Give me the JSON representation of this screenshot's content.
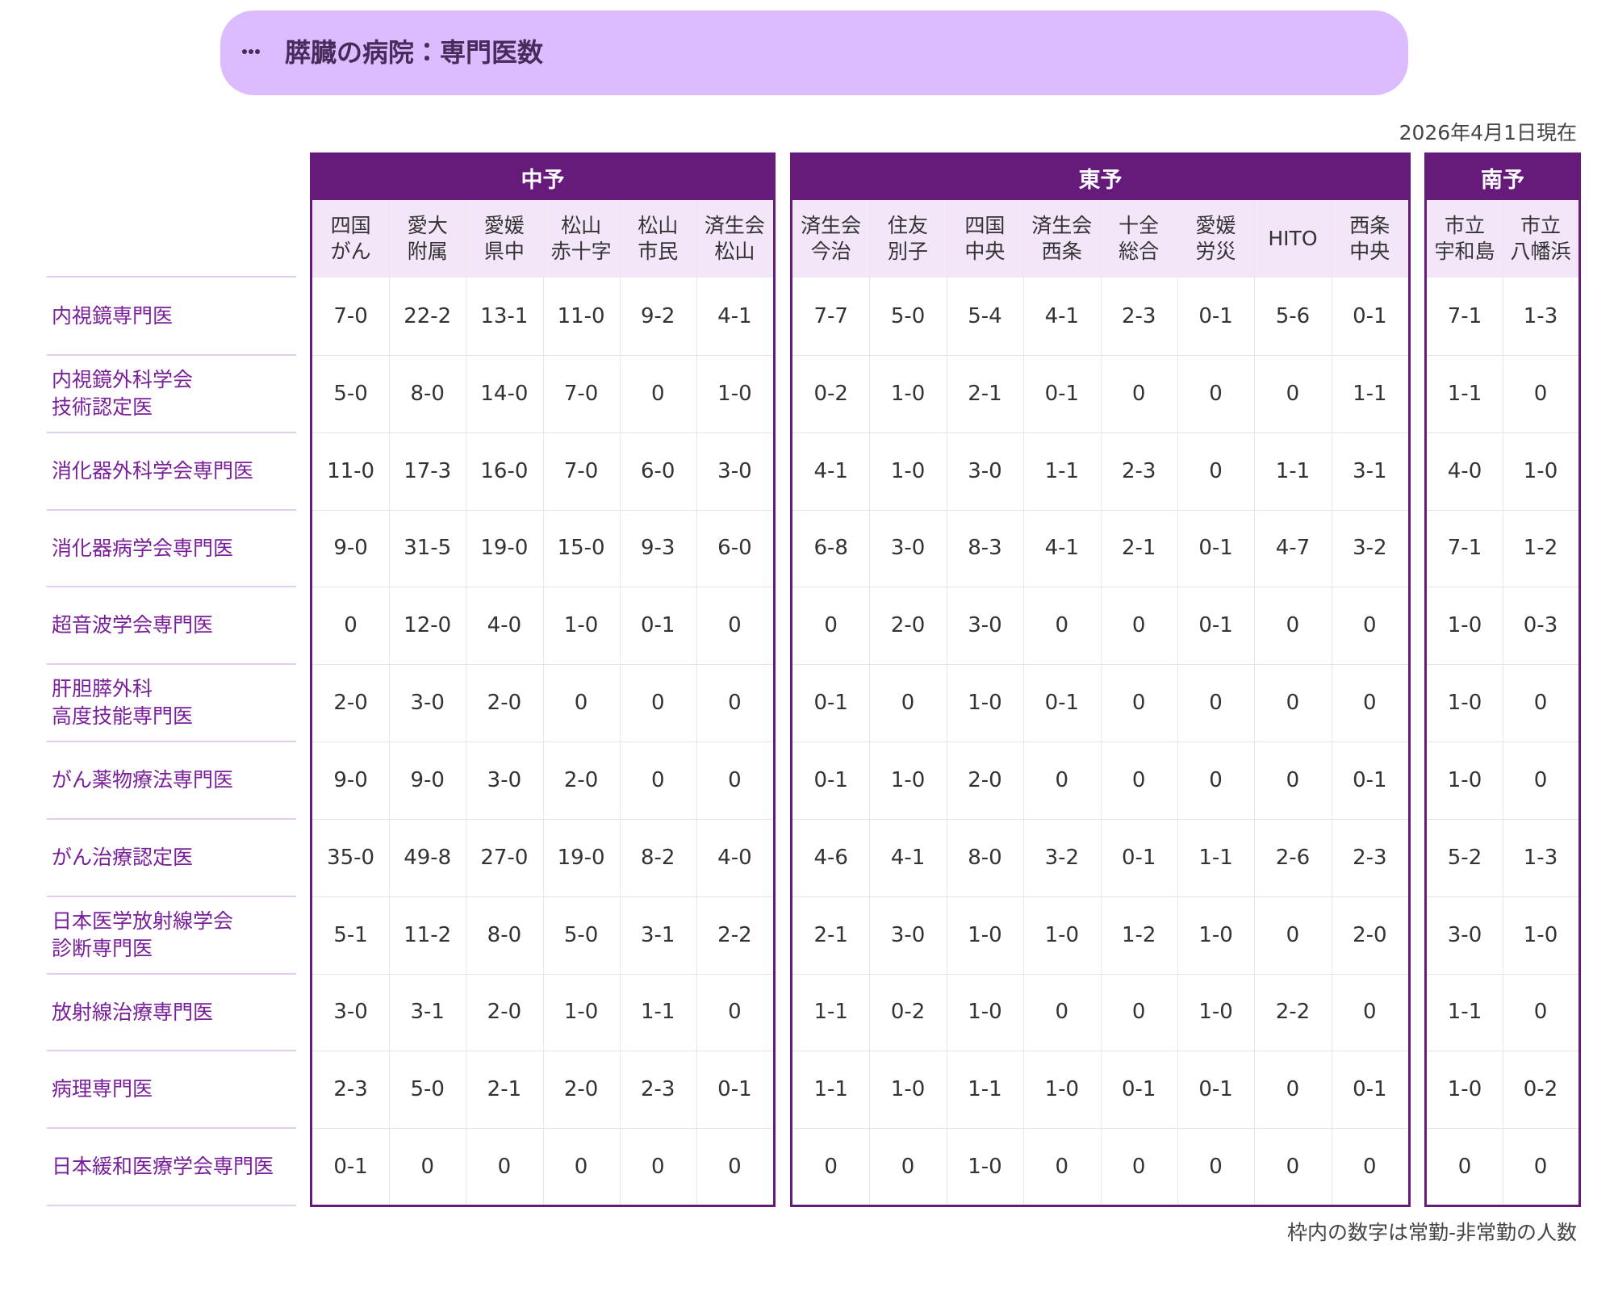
{
  "header": {
    "title": "膵臓の病院：専門医数",
    "date": "2026年4月1日現在"
  },
  "groups": [
    {
      "name": "中予",
      "hospitals": [
        [
          "四国",
          "がん"
        ],
        [
          "愛大",
          "附属"
        ],
        [
          "愛媛",
          "県中"
        ],
        [
          "松山",
          "赤十字"
        ],
        [
          "松山",
          "市民"
        ],
        [
          "済生会",
          "松山"
        ]
      ]
    },
    {
      "name": "東予",
      "hospitals": [
        [
          "済生会",
          "今治"
        ],
        [
          "住友",
          "別子"
        ],
        [
          "四国",
          "中央"
        ],
        [
          "済生会",
          "西条"
        ],
        [
          "十全",
          "総合"
        ],
        [
          "愛媛",
          "労災"
        ],
        [
          "HITO"
        ],
        [
          "西条",
          "中央"
        ]
      ]
    },
    {
      "name": "南予",
      "hospitals": [
        [
          "市立",
          "宇和島"
        ],
        [
          "市立",
          "八幡浜"
        ]
      ]
    }
  ],
  "rows": [
    {
      "label": [
        "内視鏡専門医"
      ],
      "cells": [
        "7-0",
        "22-2",
        "13-1",
        "11-0",
        "9-2",
        "4-1",
        "7-7",
        "5-0",
        "5-4",
        "4-1",
        "2-3",
        "0-1",
        "5-6",
        "0-1",
        "7-1",
        "1-3"
      ]
    },
    {
      "label": [
        "内視鏡外科学会",
        "技術認定医"
      ],
      "cells": [
        "5-0",
        "8-0",
        "14-0",
        "7-0",
        "0",
        "1-0",
        "0-2",
        "1-0",
        "2-1",
        "0-1",
        "0",
        "0",
        "0",
        "1-1",
        "1-1",
        "0"
      ]
    },
    {
      "label": [
        "消化器外科学会専門医"
      ],
      "cells": [
        "11-0",
        "17-3",
        "16-0",
        "7-0",
        "6-0",
        "3-0",
        "4-1",
        "1-0",
        "3-0",
        "1-1",
        "2-3",
        "0",
        "1-1",
        "3-1",
        "4-0",
        "1-0"
      ]
    },
    {
      "label": [
        "消化器病学会専門医"
      ],
      "cells": [
        "9-0",
        "31-5",
        "19-0",
        "15-0",
        "9-3",
        "6-0",
        "6-8",
        "3-0",
        "8-3",
        "4-1",
        "2-1",
        "0-1",
        "4-7",
        "3-2",
        "7-1",
        "1-2"
      ]
    },
    {
      "label": [
        "超音波学会専門医"
      ],
      "cells": [
        "0",
        "12-0",
        "4-0",
        "1-0",
        "0-1",
        "0",
        "0",
        "2-0",
        "3-0",
        "0",
        "0",
        "0-1",
        "0",
        "0",
        "1-0",
        "0-3"
      ]
    },
    {
      "label": [
        "肝胆膵外科",
        "高度技能専門医"
      ],
      "cells": [
        "2-0",
        "3-0",
        "2-0",
        "0",
        "0",
        "0",
        "0-1",
        "0",
        "1-0",
        "0-1",
        "0",
        "0",
        "0",
        "0",
        "1-0",
        "0"
      ]
    },
    {
      "label": [
        "がん薬物療法専門医"
      ],
      "cells": [
        "9-0",
        "9-0",
        "3-0",
        "2-0",
        "0",
        "0",
        "0-1",
        "1-0",
        "2-0",
        "0",
        "0",
        "0",
        "0",
        "0-1",
        "1-0",
        "0"
      ]
    },
    {
      "label": [
        "がん治療認定医"
      ],
      "cells": [
        "35-0",
        "49-8",
        "27-0",
        "19-0",
        "8-2",
        "4-0",
        "4-6",
        "4-1",
        "8-0",
        "3-2",
        "0-1",
        "1-1",
        "2-6",
        "2-3",
        "5-2",
        "1-3"
      ]
    },
    {
      "label": [
        "日本医学放射線学会",
        "診断専門医"
      ],
      "cells": [
        "5-1",
        "11-2",
        "8-0",
        "5-0",
        "3-1",
        "2-2",
        "2-1",
        "3-0",
        "1-0",
        "1-0",
        "1-2",
        "1-0",
        "0",
        "2-0",
        "3-0",
        "1-0"
      ]
    },
    {
      "label": [
        "放射線治療専門医"
      ],
      "cells": [
        "3-0",
        "3-1",
        "2-0",
        "1-0",
        "1-1",
        "0",
        "1-1",
        "0-2",
        "1-0",
        "0",
        "0",
        "1-0",
        "2-2",
        "0",
        "1-1",
        "0"
      ]
    },
    {
      "label": [
        "病理専門医"
      ],
      "cells": [
        "2-3",
        "5-0",
        "2-1",
        "2-0",
        "2-3",
        "0-1",
        "1-1",
        "1-0",
        "1-1",
        "1-0",
        "0-1",
        "0-1",
        "0",
        "0-1",
        "1-0",
        "0-2"
      ]
    },
    {
      "label": [
        "日本緩和医療学会専門医"
      ],
      "cells": [
        "0-1",
        "0",
        "0",
        "0",
        "0",
        "0",
        "0",
        "0",
        "1-0",
        "0",
        "0",
        "0",
        "0",
        "0",
        "0",
        "0"
      ]
    }
  ],
  "footnote": "枠内の数字は常勤-非常勤の人数"
}
